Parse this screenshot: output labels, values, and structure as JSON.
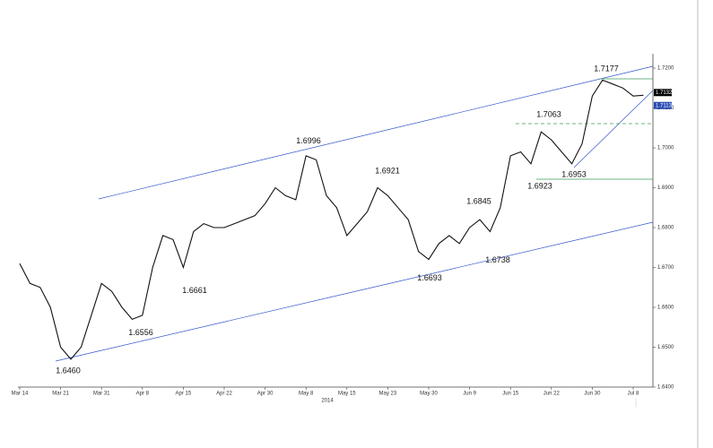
{
  "chart_data": {
    "type": "line",
    "x_axis_label": "2014",
    "categories": [
      "Mar 14",
      null,
      null,
      null,
      "Mar 21",
      null,
      null,
      null,
      "Mar 31",
      null,
      null,
      null,
      "Apr 8",
      null,
      null,
      null,
      "Apr 15",
      null,
      null,
      null,
      "Apr 22",
      null,
      null,
      null,
      "Apr 30",
      null,
      null,
      null,
      "May 8",
      null,
      null,
      null,
      "May 15",
      null,
      null,
      null,
      "May 23",
      null,
      null,
      null,
      "May 30",
      null,
      null,
      null,
      "Jun 9",
      null,
      null,
      null,
      "Jun 15",
      null,
      null,
      null,
      "Jun 22",
      null,
      null,
      null,
      "Jun 30",
      null,
      null,
      null,
      "Jul 8",
      null
    ],
    "values": [
      1.671,
      1.666,
      1.665,
      1.66,
      1.65,
      1.647,
      1.65,
      1.658,
      1.666,
      1.664,
      1.66,
      1.657,
      1.658,
      1.67,
      1.678,
      1.677,
      1.67,
      1.679,
      1.681,
      1.68,
      1.68,
      1.681,
      1.682,
      1.683,
      1.686,
      1.69,
      1.688,
      1.687,
      1.698,
      1.697,
      1.688,
      1.685,
      1.678,
      1.681,
      1.684,
      1.69,
      1.688,
      1.685,
      1.682,
      1.674,
      1.672,
      1.676,
      1.678,
      1.676,
      1.68,
      1.682,
      1.679,
      1.685,
      1.698,
      1.699,
      1.696,
      1.704,
      1.702,
      1.699,
      1.696,
      1.701,
      1.713,
      1.717,
      1.716,
      1.715,
      1.713,
      1.7132
    ],
    "color": "#111111",
    "ylim": [
      1.64,
      1.7225
    ],
    "yticks": [
      {
        "value": 1.64,
        "label": "1.6400"
      },
      {
        "value": 1.65,
        "label": "1.6500"
      },
      {
        "value": 1.66,
        "label": "1.6600"
      },
      {
        "value": 1.67,
        "label": "1.6700"
      },
      {
        "value": 1.68,
        "label": "1.6800"
      },
      {
        "value": 1.69,
        "label": "1.6900"
      },
      {
        "value": 1.7,
        "label": "1.7000"
      },
      {
        "value": 1.71,
        "label": "1.7100"
      },
      {
        "value": 1.72,
        "label": "1.7200"
      }
    ],
    "annotations": [
      {
        "value": 1.646,
        "label": "1.6460"
      },
      {
        "value": 1.6556,
        "label": "1.6556"
      },
      {
        "value": 1.6661,
        "label": "1.6661"
      },
      {
        "value": 1.6996,
        "label": "1.6996"
      },
      {
        "value": 1.6921,
        "label": "1.6921"
      },
      {
        "value": 1.6693,
        "label": "1.6693"
      },
      {
        "value": 1.6845,
        "label": "1.6845"
      },
      {
        "value": 1.6738,
        "label": "1.6738"
      },
      {
        "value": 1.7063,
        "label": "1.7063"
      },
      {
        "value": 1.6923,
        "label": "1.6923"
      },
      {
        "value": 1.6953,
        "label": "1.6953"
      },
      {
        "value": 1.7177,
        "label": "1.7177"
      }
    ],
    "price_tags": [
      {
        "value": 1.7132,
        "label": "1.7132",
        "color": "#000000"
      },
      {
        "value": 1.7113,
        "label": "1.7113",
        "color": "#2a4db5"
      }
    ]
  }
}
